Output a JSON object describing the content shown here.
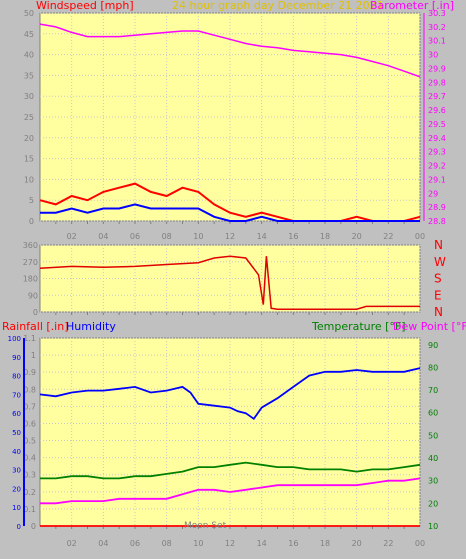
{
  "header": {
    "left_label": "Windspeed [mph]",
    "title": "24 hour graph day   December 21 2021",
    "right_label": "Barometer [.in]"
  },
  "colors": {
    "panel_bg": "#ffffa0",
    "page_bg": "#c0c0c0",
    "grid": "#c8c8c8",
    "axis_text": "#808080",
    "axis_red": "#ff0000",
    "magenta": "#ff00ff",
    "blue": "#0000ff",
    "green": "#008000",
    "gold": "#e0c000",
    "wind_red": "#ff0000",
    "dir_red": "#e00000"
  },
  "x_ticks": [
    "02",
    "04",
    "06",
    "08",
    "10",
    "12",
    "14",
    "16",
    "18",
    "20",
    "22",
    "00"
  ],
  "wind_panel": {
    "left_ticks": [
      "0",
      "5",
      "10",
      "15",
      "20",
      "25",
      "30",
      "35",
      "40",
      "45",
      "50"
    ],
    "right_ticks": [
      "28.8",
      "28.9",
      "29",
      "29.1",
      "29.2",
      "29.3",
      "29.4",
      "29.5",
      "29.6",
      "29.7",
      "29.8",
      "29.9",
      "30",
      "30.1",
      "30.2",
      "30.3"
    ]
  },
  "dir_panel": {
    "left_ticks": [
      "0",
      "90",
      "180",
      "270",
      "360"
    ],
    "compass": [
      "N",
      "W",
      "S",
      "E",
      "N"
    ]
  },
  "climate_panel": {
    "labels": {
      "rain": "Rainfall [.in]",
      "humidity": "Humidity",
      "temperature": "Temperature [°F]",
      "dewpoint": "Dew Point [°F]",
      "moon": "Moon Set"
    },
    "humidity_ticks": [
      "0",
      "10",
      "20",
      "30",
      "40",
      "50",
      "60",
      "70",
      "80",
      "90",
      "100"
    ],
    "rain_ticks": [
      "0",
      "0.1",
      "0.2",
      "0.3",
      "0.4",
      "0.5",
      "0.6",
      "0.7",
      "0.8",
      "0.9",
      "1",
      "1.1"
    ],
    "temp_ticks": [
      "10",
      "20",
      "30",
      "40",
      "50",
      "60",
      "70",
      "80",
      "90"
    ]
  },
  "chart_data": {
    "type": "line",
    "x_unit": "hour of day",
    "xlim": [
      0,
      24
    ],
    "charts": [
      {
        "name": "wind",
        "ylim_left": [
          0,
          50
        ],
        "ylim_right": [
          28.8,
          30.3
        ],
        "series": [
          {
            "name": "Barometer [.in]",
            "axis": "right",
            "x": [
              0,
              1,
              2,
              3,
              4,
              5,
              6,
              7,
              8,
              9,
              10,
              11,
              12,
              13,
              14,
              15,
              16,
              17,
              18,
              19,
              20,
              21,
              22,
              23,
              24
            ],
            "y": [
              30.22,
              30.2,
              30.16,
              30.13,
              30.13,
              30.13,
              30.14,
              30.15,
              30.16,
              30.17,
              30.17,
              30.14,
              30.11,
              30.08,
              30.06,
              30.05,
              30.03,
              30.02,
              30.01,
              30.0,
              29.98,
              29.95,
              29.92,
              29.88,
              29.84
            ]
          },
          {
            "name": "gust",
            "axis": "left",
            "x": [
              0,
              1,
              2,
              3,
              4,
              5,
              6,
              7,
              8,
              9,
              10,
              11,
              12,
              13,
              14,
              15,
              16,
              17,
              18,
              19,
              20,
              21,
              22,
              23,
              24
            ],
            "y": [
              5,
              4,
              6,
              5,
              7,
              8,
              9,
              7,
              6,
              8,
              7,
              4,
              2,
              1,
              2,
              1,
              0,
              0,
              0,
              0,
              1,
              0,
              0,
              0,
              1
            ]
          },
          {
            "name": "average",
            "axis": "left",
            "x": [
              0,
              1,
              2,
              3,
              4,
              5,
              6,
              7,
              8,
              9,
              10,
              11,
              12,
              13,
              14,
              15,
              16,
              17,
              18,
              19,
              20,
              21,
              22,
              23,
              24
            ],
            "y": [
              2,
              2,
              3,
              2,
              3,
              3,
              4,
              3,
              3,
              3,
              3,
              1,
              0,
              0,
              1,
              0,
              0,
              0,
              0,
              0,
              0,
              0,
              0,
              0,
              0
            ]
          }
        ]
      },
      {
        "name": "direction",
        "ylim_left": [
          0,
          360
        ],
        "series": [
          {
            "name": "direction",
            "axis": "left",
            "x": [
              0,
              2,
              4,
              6,
              8,
              10,
              11,
              12,
              13,
              13.8,
              14.1,
              14.3,
              14.6,
              15,
              18,
              20,
              20.6,
              22,
              24
            ],
            "y": [
              235,
              245,
              240,
              245,
              255,
              265,
              290,
              300,
              290,
              200,
              40,
              300,
              20,
              15,
              15,
              15,
              30,
              30,
              30
            ]
          }
        ]
      },
      {
        "name": "climate",
        "ylim_humidity": [
          0,
          100
        ],
        "ylim_rain": [
          0,
          1.1
        ],
        "ylim_temp": [
          10,
          93
        ],
        "series": [
          {
            "name": "Humidity",
            "axis": "humidity",
            "x": [
              0,
              1,
              2,
              3,
              4,
              5,
              6,
              7,
              8,
              9,
              9.5,
              10,
              11,
              12,
              12.5,
              13,
              13.5,
              14,
              15,
              16,
              17,
              18,
              19,
              20,
              21,
              22,
              23,
              24
            ],
            "y": [
              70,
              69,
              71,
              72,
              72,
              73,
              74,
              71,
              72,
              74,
              71,
              65,
              64,
              63,
              61,
              60,
              57,
              63,
              68,
              74,
              80,
              82,
              82,
              83,
              82,
              82,
              82,
              84
            ]
          },
          {
            "name": "Temperature [°F]",
            "axis": "temp",
            "x": [
              0,
              1,
              2,
              3,
              4,
              5,
              6,
              7,
              8,
              9,
              10,
              11,
              12,
              13,
              14,
              15,
              16,
              17,
              18,
              19,
              20,
              21,
              22,
              23,
              24
            ],
            "y": [
              31,
              31,
              32,
              32,
              31,
              31,
              32,
              32,
              33,
              34,
              36,
              36,
              37,
              38,
              37,
              36,
              36,
              35,
              35,
              35,
              34,
              35,
              35,
              36,
              37
            ]
          },
          {
            "name": "Dew Point [°F]",
            "axis": "temp",
            "x": [
              0,
              1,
              2,
              3,
              4,
              5,
              6,
              7,
              8,
              9,
              10,
              11,
              12,
              13,
              14,
              15,
              16,
              17,
              18,
              19,
              20,
              21,
              22,
              23,
              24
            ],
            "y": [
              20,
              20,
              21,
              21,
              21,
              22,
              22,
              22,
              22,
              24,
              26,
              26,
              25,
              26,
              27,
              28,
              28,
              28,
              28,
              28,
              28,
              29,
              30,
              30,
              31
            ]
          },
          {
            "name": "Rainfall [.in]",
            "axis": "rain",
            "x": [
              0,
              24
            ],
            "y": [
              0,
              0
            ]
          }
        ]
      }
    ]
  }
}
